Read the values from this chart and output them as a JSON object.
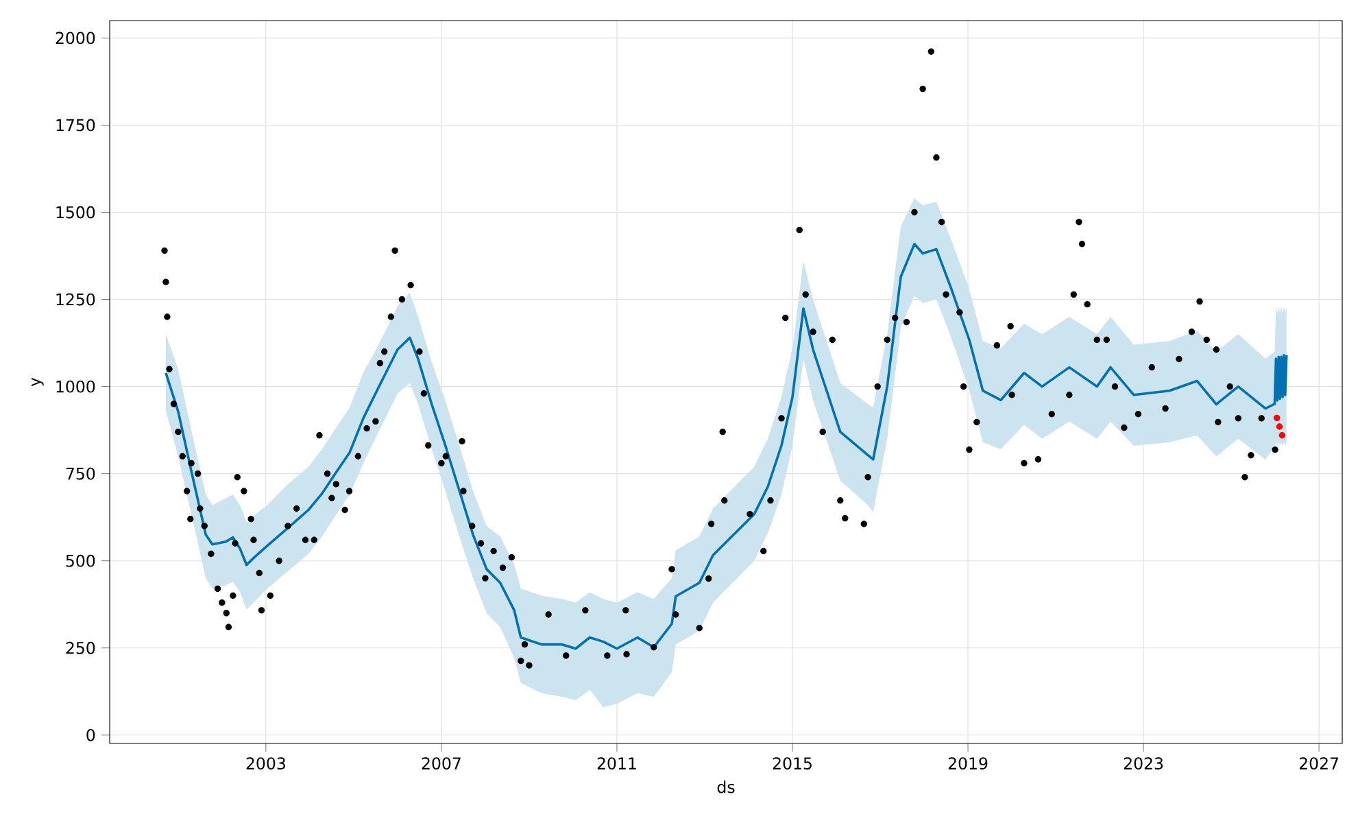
{
  "chart_data": {
    "type": "scatter",
    "xlabel": "ds",
    "ylabel": "y",
    "xlim": [
      1999.44,
      2027.53
    ],
    "ylim": [
      -24,
      2050
    ],
    "xticks": [
      2003,
      2007,
      2011,
      2015,
      2019,
      2023,
      2027
    ],
    "yticks": [
      0,
      250,
      500,
      750,
      1000,
      1250,
      1500,
      1750,
      2000
    ],
    "grid": true,
    "series": [
      {
        "type": "line",
        "color": "#0072b2",
        "marker": "none",
        "line_style": "solid",
        "x": [
          2000.72,
          2001.0,
          2001.31,
          2001.63,
          2001.78,
          2002.09,
          2002.25,
          2002.41,
          2002.56,
          2002.72,
          2003.03,
          2003.5,
          2003.97,
          2004.28,
          2004.59,
          2004.91,
          2005.22,
          2005.53,
          2006.0,
          2006.28,
          2006.47,
          2006.78,
          2007.09,
          2007.41,
          2007.72,
          2008.03,
          2008.34,
          2008.66,
          2008.81,
          2009.28,
          2009.75,
          2010.06,
          2010.38,
          2010.69,
          2011.0,
          2011.47,
          2011.84,
          2012.25,
          2012.34,
          2012.88,
          2013.19,
          2013.66,
          2014.13,
          2014.44,
          2014.75,
          2015.0,
          2015.25,
          2015.47,
          2016.09,
          2016.72,
          2016.84,
          2017.16,
          2017.47,
          2017.78,
          2017.97,
          2018.28,
          2018.59,
          2019.03,
          2019.34,
          2019.75,
          2020.28,
          2020.69,
          2021.31,
          2021.94,
          2022.25,
          2022.78,
          2023.59,
          2024.22,
          2024.66,
          2025.16,
          2025.78,
          2025.99,
          2026.02,
          2026.05,
          2026.08,
          2026.11,
          2026.14,
          2026.17,
          2026.2,
          2026.23,
          2026.26
        ],
        "values": [
          1039,
          929,
          752,
          575,
          547,
          555,
          567,
          535,
          488,
          508,
          543,
          594,
          646,
          693,
          752,
          811,
          909,
          988,
          1106,
          1140,
          1079,
          949,
          831,
          701,
          575,
          476,
          437,
          358,
          280,
          260,
          260,
          248,
          280,
          268,
          248,
          280,
          252,
          319,
          398,
          437,
          516,
          575,
          634,
          713,
          831,
          969,
          1224,
          1106,
          870,
          803,
          791,
          1000,
          1315,
          1409,
          1382,
          1394,
          1291,
          1134,
          988,
          961,
          1039,
          1000,
          1055,
          1000,
          1055,
          976,
          988,
          1016,
          949,
          1000,
          937,
          950,
          1080,
          960,
          1085,
          965,
          1085,
          970,
          1090,
          975,
          1090
        ],
        "lower": [
          930,
          800,
          630,
          450,
          420,
          430,
          440,
          410,
          360,
          380,
          420,
          470,
          520,
          570,
          630,
          690,
          780,
          860,
          980,
          1010,
          950,
          820,
          700,
          570,
          450,
          350,
          310,
          220,
          150,
          120,
          110,
          100,
          130,
          80,
          90,
          120,
          110,
          180,
          260,
          300,
          380,
          440,
          500,
          580,
          690,
          830,
          1080,
          960,
          730,
          660,
          640,
          850,
          1170,
          1260,
          1240,
          1250,
          1150,
          990,
          840,
          820,
          890,
          850,
          900,
          850,
          900,
          830,
          840,
          860,
          800,
          850,
          790,
          830,
          840,
          830,
          840,
          830,
          840,
          830,
          840,
          830,
          840
        ],
        "upper": [
          1150,
          1050,
          870,
          690,
          660,
          680,
          690,
          660,
          610,
          630,
          660,
          720,
          770,
          820,
          880,
          940,
          1040,
          1110,
          1230,
          1270,
          1200,
          1070,
          960,
          830,
          700,
          600,
          570,
          490,
          420,
          400,
          390,
          380,
          410,
          390,
          380,
          410,
          390,
          450,
          530,
          570,
          650,
          710,
          770,
          850,
          970,
          1110,
          1360,
          1250,
          1010,
          950,
          940,
          1150,
          1460,
          1540,
          1520,
          1530,
          1430,
          1280,
          1130,
          1110,
          1180,
          1150,
          1200,
          1150,
          1200,
          1120,
          1130,
          1160,
          1100,
          1150,
          1080,
          1100,
          1230,
          1210,
          1230,
          1210,
          1230,
          1210,
          1230,
          1210,
          1230
        ]
      },
      {
        "color": "#000000",
        "marker": "circle",
        "x": [
          2000.69,
          2000.72,
          2000.75,
          2000.8,
          2000.9,
          2001.0,
          2001.1,
          2001.2,
          2001.28,
          2001.3,
          2001.45,
          2001.5,
          2001.6,
          2001.75,
          2001.9,
          2002.0,
          2002.1,
          2002.15,
          2002.25,
          2002.3,
          2002.35,
          2002.5,
          2002.66,
          2002.72,
          2002.85,
          2002.9,
          2003.1,
          2003.3,
          2003.5,
          2003.7,
          2003.9,
          2004.1,
          2004.22,
          2004.4,
          2004.5,
          2004.6,
          2004.8,
          2004.9,
          2005.1,
          2005.3,
          2005.5,
          2005.6,
          2005.7,
          2005.85,
          2005.94,
          2006.1,
          2006.3,
          2006.5,
          2006.6,
          2006.7,
          2007.0,
          2007.1,
          2007.47,
          2007.5,
          2007.7,
          2007.9,
          2008.0,
          2008.19,
          2008.4,
          2008.6,
          2008.81,
          2008.9,
          2009.0,
          2009.44,
          2009.84,
          2010.28,
          2010.78,
          2011.2,
          2011.22,
          2011.84,
          2012.25,
          2012.34,
          2012.88,
          2013.09,
          2013.15,
          2013.41,
          2013.45,
          2014.03,
          2014.34,
          2014.5,
          2014.75,
          2014.84,
          2015.16,
          2015.3,
          2015.47,
          2015.69,
          2015.91,
          2016.09,
          2016.2,
          2016.63,
          2016.72,
          2016.94,
          2017.16,
          2017.34,
          2017.6,
          2017.78,
          2017.97,
          2018.16,
          2018.28,
          2018.4,
          2018.5,
          2018.81,
          2018.9,
          2019.03,
          2019.2,
          2019.66,
          2019.97,
          2020.0,
          2020.28,
          2020.6,
          2020.91,
          2021.31,
          2021.41,
          2021.53,
          2021.6,
          2021.72,
          2021.94,
          2022.16,
          2022.35,
          2022.56,
          2022.88,
          2023.19,
          2023.5,
          2023.81,
          2024.1,
          2024.28,
          2024.44,
          2024.66,
          2024.7,
          2024.97,
          2025.16,
          2025.31,
          2025.45,
          2025.69,
          2026.0
        ],
        "values": [
          1390,
          1300,
          1200,
          1050,
          950,
          870,
          800,
          700,
          620,
          780,
          750,
          650,
          600,
          520,
          420,
          380,
          350,
          310,
          400,
          550,
          740,
          700,
          620,
          560,
          465,
          358,
          400,
          500,
          600,
          650,
          560,
          560,
          860,
          750,
          680,
          720,
          646,
          700,
          800,
          880,
          900,
          1067,
          1100,
          1200,
          1390,
          1250,
          1291,
          1100,
          980,
          831,
          780,
          800,
          843,
          700,
          600,
          550,
          450,
          528,
          480,
          510,
          213,
          260,
          200,
          346,
          228,
          358,
          228,
          358,
          232,
          252,
          476,
          346,
          307,
          449,
          606,
          870,
          673,
          634,
          528,
          673,
          909,
          1197,
          1449,
          1264,
          1157,
          870,
          1134,
          673,
          622,
          606,
          740,
          1000,
          1134,
          1197,
          1185,
          1500,
          1854,
          1961,
          1657,
          1472,
          1264,
          1213,
          1000,
          819,
          898,
          1118,
          1173,
          976,
          780,
          791,
          921,
          976,
          1264,
          1472,
          1409,
          1236,
          1134,
          1134,
          1000,
          882,
          921,
          1055,
          937,
          1079,
          1157,
          1244,
          1134,
          1106,
          898,
          1000,
          909,
          740,
          803,
          909,
          819
        ]
      },
      {
        "color": "#ff0000",
        "marker": "circle",
        "x": [
          2026.04,
          2026.1,
          2026.16
        ],
        "values": [
          910,
          885,
          860
        ]
      }
    ]
  }
}
